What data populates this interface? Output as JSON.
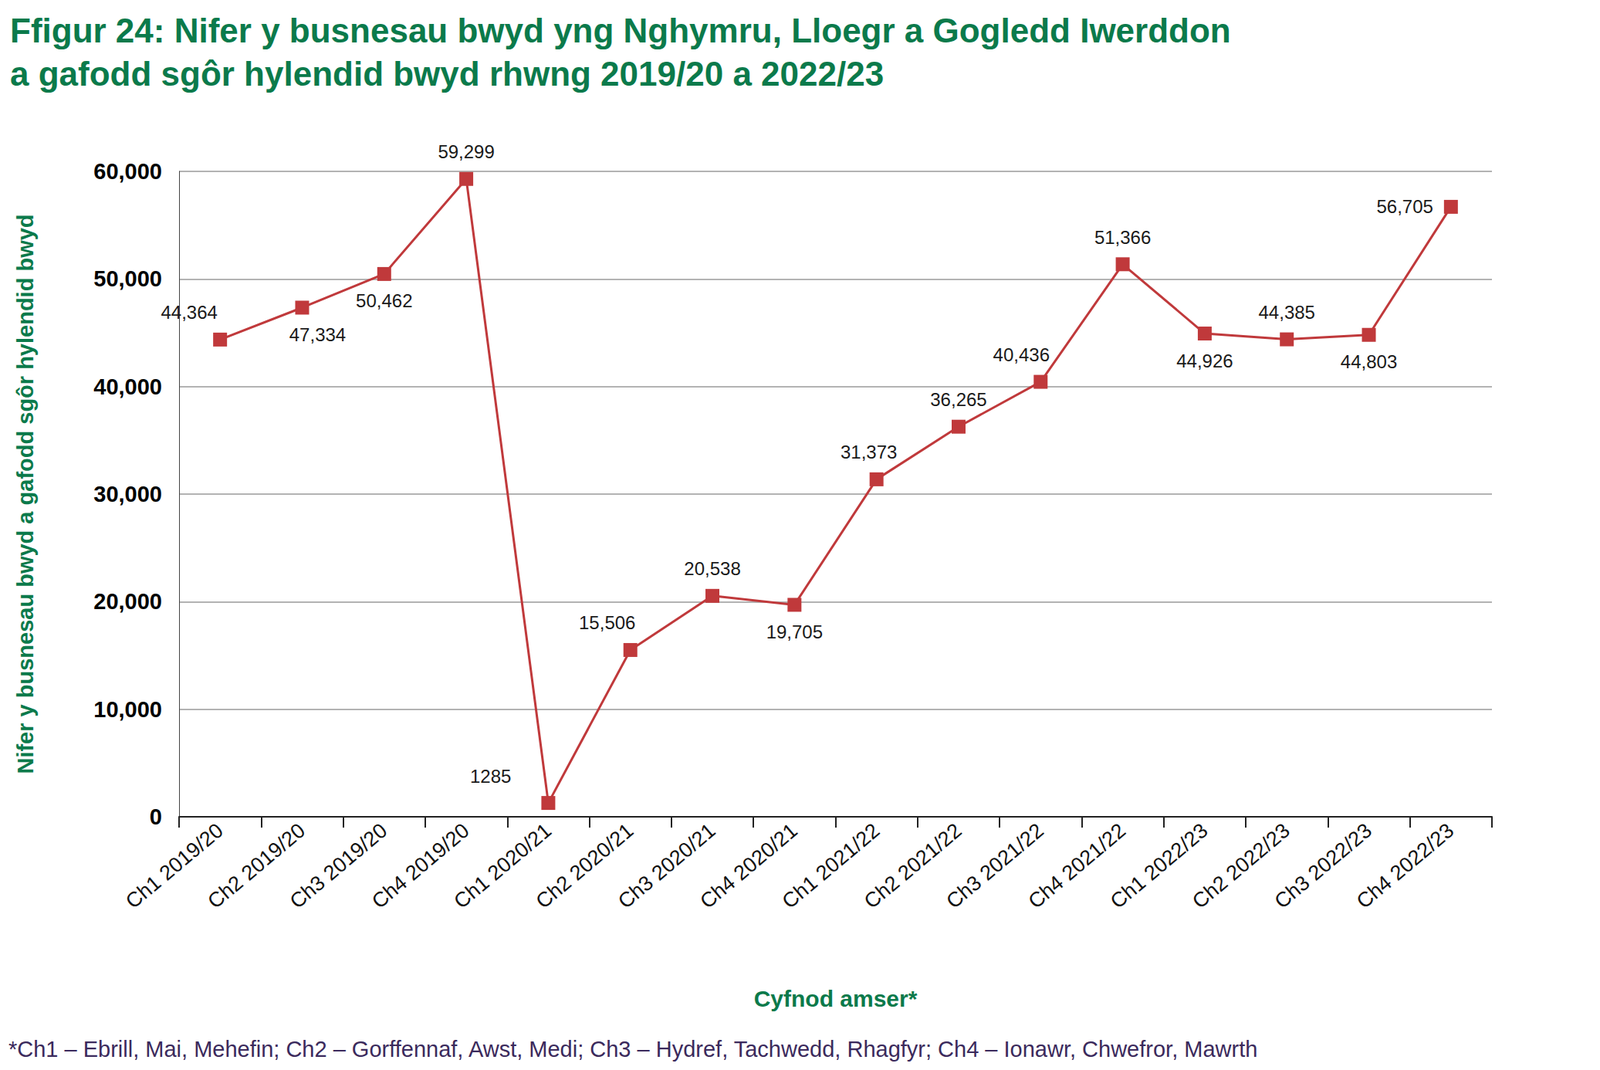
{
  "chart_data": {
    "type": "line",
    "title": "Ffigur 24: Nifer y busnesau bwyd yng Nghymru, Lloegr a Gogledd Iwerddon\na gafodd sgôr hylendid bwyd rhwng 2019/20 a 2022/23",
    "x_label": "Cyfnod amser*",
    "y_label": "Nifer y busnesau bwyd a gafodd sgôr hylendid bwyd",
    "annotations": [
      "*Ch1 – Ebrill, Mai, Mehefin; Ch2 – Gorffennaf, Awst, Medi; Ch3 – Hydref, Tachwedd, Rhagfyr; Ch4 – Ionawr, Chwefror, Mawrth"
    ],
    "categories": [
      "Ch1 2019/20",
      "Ch2 2019/20",
      "Ch3 2019/20",
      "Ch4 2019/20",
      "Ch1 2020/21",
      "Ch2 2020/21",
      "Ch3 2020/21",
      "Ch4 2020/21",
      "Ch1 2021/22",
      "Ch2 2021/22",
      "Ch3 2021/22",
      "Ch4 2021/22",
      "Ch1 2022/23",
      "Ch2 2022/23",
      "Ch3 2022/23",
      "Ch4 2022/23"
    ],
    "values": [
      44364,
      47334,
      50462,
      59299,
      1285,
      15506,
      20538,
      19705,
      31373,
      36265,
      40436,
      51366,
      44926,
      44385,
      44803,
      56705
    ],
    "value_labels": [
      "44,364",
      "47,334",
      "50,462",
      "59,299",
      "1285",
      "15,506",
      "20,538",
      "19,705",
      "31,373",
      "36,265",
      "40,436",
      "51,366",
      "44,926",
      "44,385",
      "44,803",
      "56,705"
    ],
    "color": "#c0393b",
    "marker": "square",
    "data_labels": true,
    "grid": true,
    "ylim": [
      0,
      60000
    ],
    "yticks": [
      0,
      {
        "value": 10000,
        "label": "10,000"
      },
      {
        "value": 20000,
        "label": "20,000"
      },
      {
        "value": 30000,
        "label": "30,000"
      },
      {
        "value": 40000,
        "label": "40,000"
      },
      {
        "value": 50000,
        "label": "50,000"
      },
      {
        "value": 60000,
        "label": "60,000"
      }
    ]
  }
}
